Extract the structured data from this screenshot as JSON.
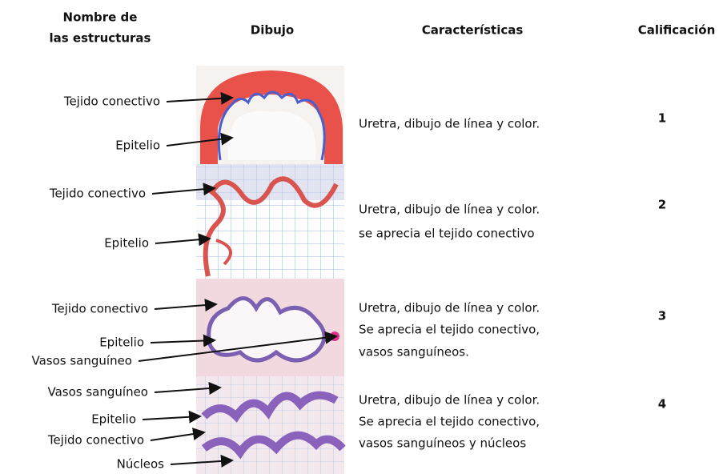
{
  "headers": {
    "structures": [
      "Nombre de",
      "las estructuras"
    ],
    "drawing": "Dibujo",
    "characteristics": "Características",
    "grade": "Calificación"
  },
  "rows": [
    {
      "labels": [
        "Tejido conectivo",
        "Epitelio"
      ],
      "characteristics": [
        "Uretra, dibujo de línea y color."
      ],
      "grade": "1"
    },
    {
      "labels": [
        "Tejido conectivo",
        "Epitelio"
      ],
      "characteristics": [
        "Uretra, dibujo de línea y color.",
        "se aprecia el tejido conectivo"
      ],
      "grade": "2"
    },
    {
      "labels": [
        "Tejido conectivo",
        "Epitelio",
        "Vasos sanguíneo"
      ],
      "characteristics": [
        "Uretra, dibujo de línea y color.",
        "Se aprecia el tejido conectivo,",
        "vasos sanguíneos."
      ],
      "grade": "3"
    },
    {
      "labels": [
        "Vasos sanguíneo",
        "Epitelio",
        "Tejido conectivo",
        "Núcleos"
      ],
      "characteristics": [
        "Uretra, dibujo de línea y color.",
        "Se aprecia el tejido conectivo,",
        "vasos sanguíneos y núcleos"
      ],
      "grade": "4"
    }
  ]
}
